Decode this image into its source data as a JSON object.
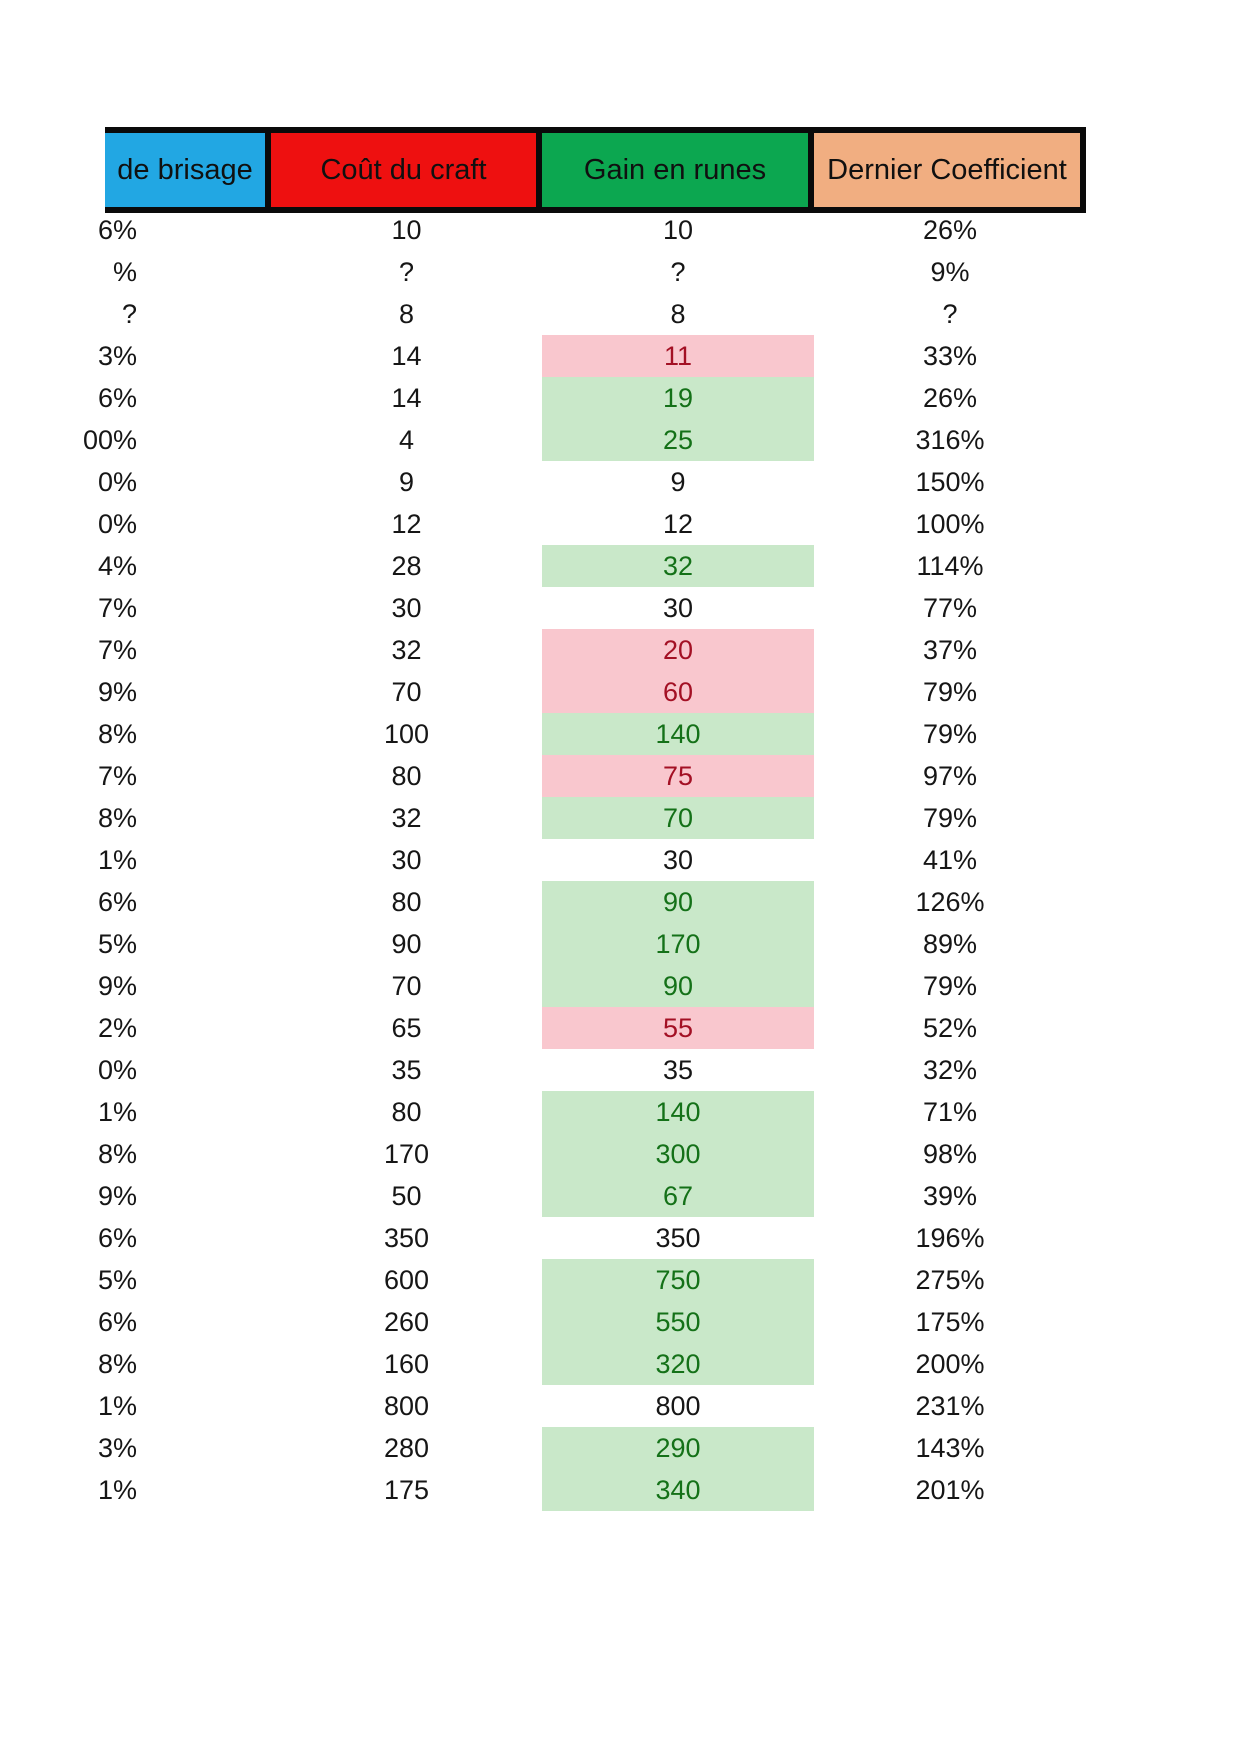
{
  "page": {
    "background": "#FFFFFF",
    "border_color": "#0A0A0A",
    "body_text_color": "#161616"
  },
  "header": {
    "columns": [
      {
        "label": "de brisage",
        "color": "#22A7E3"
      },
      {
        "label": "Coût du craft",
        "color": "#EE1010"
      },
      {
        "label": "Gain en runes",
        "color": "#0CA750"
      },
      {
        "label": "Dernier Coefficient",
        "color": "#F1AE81"
      }
    ]
  },
  "highlight_colors": {
    "red": {
      "bg": "#F9C7CE",
      "text": "#A31024"
    },
    "green": {
      "bg": "#C9E8C9",
      "text": "#147118"
    },
    "none": {
      "bg": "",
      "text": "#161616"
    }
  },
  "rows": [
    {
      "brisage": "6%",
      "cout": "10",
      "gain": "10",
      "coef": "26%",
      "gain_highlight": "none"
    },
    {
      "brisage": "%",
      "cout": "?",
      "gain": "?",
      "coef": "9%",
      "gain_highlight": "none"
    },
    {
      "brisage": "?",
      "cout": "8",
      "gain": "8",
      "coef": "?",
      "gain_highlight": "none"
    },
    {
      "brisage": "3%",
      "cout": "14",
      "gain": "11",
      "coef": "33%",
      "gain_highlight": "red"
    },
    {
      "brisage": "6%",
      "cout": "14",
      "gain": "19",
      "coef": "26%",
      "gain_highlight": "green"
    },
    {
      "brisage": "00%",
      "cout": "4",
      "gain": "25",
      "coef": "316%",
      "gain_highlight": "green"
    },
    {
      "brisage": "0%",
      "cout": "9",
      "gain": "9",
      "coef": "150%",
      "gain_highlight": "none"
    },
    {
      "brisage": "0%",
      "cout": "12",
      "gain": "12",
      "coef": "100%",
      "gain_highlight": "none"
    },
    {
      "brisage": "4%",
      "cout": "28",
      "gain": "32",
      "coef": "114%",
      "gain_highlight": "green"
    },
    {
      "brisage": "7%",
      "cout": "30",
      "gain": "30",
      "coef": "77%",
      "gain_highlight": "none"
    },
    {
      "brisage": "7%",
      "cout": "32",
      "gain": "20",
      "coef": "37%",
      "gain_highlight": "red"
    },
    {
      "brisage": "9%",
      "cout": "70",
      "gain": "60",
      "coef": "79%",
      "gain_highlight": "red"
    },
    {
      "brisage": "8%",
      "cout": "100",
      "gain": "140",
      "coef": "79%",
      "gain_highlight": "green"
    },
    {
      "brisage": "7%",
      "cout": "80",
      "gain": "75",
      "coef": "97%",
      "gain_highlight": "red"
    },
    {
      "brisage": "8%",
      "cout": "32",
      "gain": "70",
      "coef": "79%",
      "gain_highlight": "green"
    },
    {
      "brisage": "1%",
      "cout": "30",
      "gain": "30",
      "coef": "41%",
      "gain_highlight": "none"
    },
    {
      "brisage": "6%",
      "cout": "80",
      "gain": "90",
      "coef": "126%",
      "gain_highlight": "green"
    },
    {
      "brisage": "5%",
      "cout": "90",
      "gain": "170",
      "coef": "89%",
      "gain_highlight": "green"
    },
    {
      "brisage": "9%",
      "cout": "70",
      "gain": "90",
      "coef": "79%",
      "gain_highlight": "green"
    },
    {
      "brisage": "2%",
      "cout": "65",
      "gain": "55",
      "coef": "52%",
      "gain_highlight": "red"
    },
    {
      "brisage": "0%",
      "cout": "35",
      "gain": "35",
      "coef": "32%",
      "gain_highlight": "none"
    },
    {
      "brisage": "1%",
      "cout": "80",
      "gain": "140",
      "coef": "71%",
      "gain_highlight": "green"
    },
    {
      "brisage": "8%",
      "cout": "170",
      "gain": "300",
      "coef": "98%",
      "gain_highlight": "green"
    },
    {
      "brisage": "9%",
      "cout": "50",
      "gain": "67",
      "coef": "39%",
      "gain_highlight": "green"
    },
    {
      "brisage": "6%",
      "cout": "350",
      "gain": "350",
      "coef": "196%",
      "gain_highlight": "none"
    },
    {
      "brisage": "5%",
      "cout": "600",
      "gain": "750",
      "coef": "275%",
      "gain_highlight": "green"
    },
    {
      "brisage": "6%",
      "cout": "260",
      "gain": "550",
      "coef": "175%",
      "gain_highlight": "green"
    },
    {
      "brisage": "8%",
      "cout": "160",
      "gain": "320",
      "coef": "200%",
      "gain_highlight": "green"
    },
    {
      "brisage": "1%",
      "cout": "800",
      "gain": "800",
      "coef": "231%",
      "gain_highlight": "none"
    },
    {
      "brisage": "3%",
      "cout": "280",
      "gain": "290",
      "coef": "143%",
      "gain_highlight": "green"
    },
    {
      "brisage": "1%",
      "cout": "175",
      "gain": "340",
      "coef": "201%",
      "gain_highlight": "green"
    }
  ]
}
